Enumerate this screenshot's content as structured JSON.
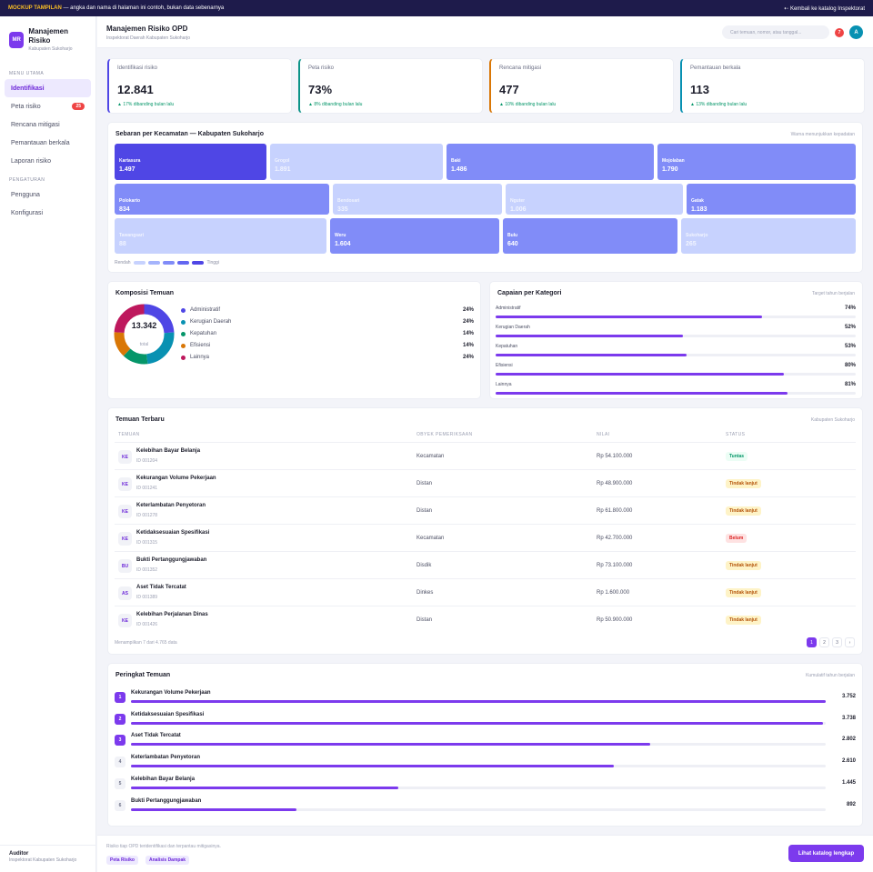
{
  "banner": {
    "tag": "MOCKUP TAMPILAN",
    "text": " — angka dan nama di halaman ini contoh, bukan data sebenarnya",
    "back": "⇠ Kembali ke katalog Inspektorat"
  },
  "brand": {
    "initials": "MR",
    "title": "Manajemen Risiko",
    "subtitle": "Kabupaten Sukoharjo"
  },
  "sidebar": {
    "section_main": "MENU UTAMA",
    "section_settings": "PENGATURAN",
    "items": [
      {
        "label": "Identifikasi"
      },
      {
        "label": "Peta risiko",
        "badge": "25"
      },
      {
        "label": "Rencana mitigasi"
      },
      {
        "label": "Pemantauan berkala"
      },
      {
        "label": "Laporan risiko"
      }
    ],
    "settings": [
      {
        "label": "Pengguna"
      },
      {
        "label": "Konfigurasi"
      }
    ],
    "footer": {
      "role": "Auditor",
      "org": "Inspektorat Kabupaten Sukoharjo"
    }
  },
  "header": {
    "title": "Manajemen Risiko OPD",
    "subtitle": "Inspektorat Daerah Kabupaten Sukoharjo",
    "search_placeholder": "Cari temuan, nomor, atau tanggal...",
    "notif_count": "7",
    "avatar": "A"
  },
  "kpis": [
    {
      "label": "Identifikasi risiko",
      "value": "12.841",
      "change": "▲ 17% dibanding bulan lalu",
      "accent": "#4f46e5"
    },
    {
      "label": "Peta risiko",
      "value": "73%",
      "change": "▲ 8% dibanding bulan lalu",
      "accent": "#0d9488"
    },
    {
      "label": "Rencana mitigasi",
      "value": "477",
      "change": "▲ 10% dibanding bulan lalu",
      "accent": "#d97706"
    },
    {
      "label": "Pemantauan berkala",
      "value": "113",
      "change": "▲ 13% dibanding bulan lalu",
      "accent": "#0891b2"
    }
  ],
  "sebaran": {
    "title": "Sebaran per Kecamatan — Kabupaten Sukoharjo",
    "note": "Warna menunjukkan kepadatan",
    "legend_low": "Rendah",
    "legend_high": "Tinggi",
    "legend_colors": [
      "#c7d2fe",
      "#a5b4fc",
      "#818cf8",
      "#6366f1",
      "#4f46e5"
    ],
    "tiles": [
      {
        "name": "Kartasura",
        "value": "1.497",
        "level": "high"
      },
      {
        "name": "Grogol",
        "value": "1.891",
        "level": "low"
      },
      {
        "name": "Baki",
        "value": "1.486",
        "level": "mid"
      },
      {
        "name": "Mojolaban",
        "value": "1.790",
        "level": "mid"
      },
      {
        "name": "Polokarto",
        "value": "834",
        "level": "mid"
      },
      {
        "name": "Bendosari",
        "value": "335",
        "level": "low"
      },
      {
        "name": "Nguter",
        "value": "1.006",
        "level": "low"
      },
      {
        "name": "Gatak",
        "value": "1.183",
        "level": "mid"
      },
      {
        "name": "Tawangsari",
        "value": "88",
        "level": "low"
      },
      {
        "name": "Weru",
        "value": "1.604",
        "level": "mid"
      },
      {
        "name": "Bulu",
        "value": "640",
        "level": "mid"
      },
      {
        "name": "Sukoharjo",
        "value": "265",
        "level": "low"
      }
    ]
  },
  "komposisi": {
    "title": "Komposisi Temuan",
    "total": "13.342",
    "total_label": "total",
    "items": [
      {
        "label": "Administratif",
        "pct": "24%",
        "value": 24,
        "color": "#4f46e5"
      },
      {
        "label": "Kerugian Daerah",
        "pct": "24%",
        "value": 24,
        "color": "#0891b2"
      },
      {
        "label": "Kepatuhan",
        "pct": "14%",
        "value": 14,
        "color": "#059669"
      },
      {
        "label": "Efisiensi",
        "pct": "14%",
        "value": 14,
        "color": "#d97706"
      },
      {
        "label": "Lainnya",
        "pct": "24%",
        "value": 24,
        "color": "#be185d"
      }
    ]
  },
  "capaian": {
    "title": "Capaian per Kategori",
    "note": "Target tahun berjalan",
    "items": [
      {
        "label": "Administratif",
        "pct": "74%",
        "value": 74
      },
      {
        "label": "Kerugian Daerah",
        "pct": "52%",
        "value": 52
      },
      {
        "label": "Kepatuhan",
        "pct": "53%",
        "value": 53
      },
      {
        "label": "Efisiensi",
        "pct": "80%",
        "value": 80
      },
      {
        "label": "Lainnya",
        "pct": "81%",
        "value": 81
      }
    ]
  },
  "temuan": {
    "title": "Temuan Terbaru",
    "note": "Kabupaten Sukoharjo",
    "columns": [
      "TEMUAN",
      "OBYEK PEMERIKSAAN",
      "NILAI",
      "STATUS"
    ],
    "rows": [
      {
        "icon": "KE",
        "title": "Kelebihan Bayar Belanja",
        "id": "ID 001204",
        "objek": "Kecamatan",
        "nilai": "Rp 54.100.000",
        "status": "Tuntas",
        "tone": "g"
      },
      {
        "icon": "KE",
        "title": "Kekurangan Volume Pekerjaan",
        "id": "ID 001241",
        "objek": "Distan",
        "nilai": "Rp 48.900.000",
        "status": "Tindak lanjut",
        "tone": "y"
      },
      {
        "icon": "KE",
        "title": "Keterlambatan Penyetoran",
        "id": "ID 001278",
        "objek": "Distan",
        "nilai": "Rp 61.800.000",
        "status": "Tindak lanjut",
        "tone": "y"
      },
      {
        "icon": "KE",
        "title": "Ketidaksesuaian Spesifikasi",
        "id": "ID 001315",
        "objek": "Kecamatan",
        "nilai": "Rp 42.700.000",
        "status": "Belum",
        "tone": "r"
      },
      {
        "icon": "BU",
        "title": "Bukti Pertanggungjawaban",
        "id": "ID 001352",
        "objek": "Disdik",
        "nilai": "Rp 73.100.000",
        "status": "Tindak lanjut",
        "tone": "y"
      },
      {
        "icon": "AS",
        "title": "Aset Tidak Tercatat",
        "id": "ID 001389",
        "objek": "Dinkes",
        "nilai": "Rp 1.600.000",
        "status": "Tindak lanjut",
        "tone": "y"
      },
      {
        "icon": "KE",
        "title": "Kelebihan Perjalanan Dinas",
        "id": "ID 001426",
        "objek": "Distan",
        "nilai": "Rp 50.900.000",
        "status": "Tindak lanjut",
        "tone": "y"
      }
    ],
    "summary": "Menampilkan 7 dari 4.765 data",
    "pages": [
      "1",
      "2",
      "3",
      "›"
    ]
  },
  "peringkat": {
    "title": "Peringkat Temuan",
    "note": "Kumulatif tahun berjalan",
    "items": [
      {
        "rank": "1",
        "label": "Kekurangan Volume Pekerjaan",
        "value": "3.752",
        "num": 3752
      },
      {
        "rank": "2",
        "label": "Ketidaksesuaian Spesifikasi",
        "value": "3.738",
        "num": 3738
      },
      {
        "rank": "3",
        "label": "Aset Tidak Tercatat",
        "value": "2.802",
        "num": 2802
      },
      {
        "rank": "4",
        "label": "Keterlambatan Penyetoran",
        "value": "2.610",
        "num": 2610
      },
      {
        "rank": "5",
        "label": "Kelebihan Bayar Belanja",
        "value": "1.445",
        "num": 1445
      },
      {
        "rank": "6",
        "label": "Bukti Pertanggungjawaban",
        "value": "892",
        "num": 892
      }
    ]
  },
  "footer": {
    "text": "Risiko tiap OPD teridentifikasi dan terpantau mitigasinya.",
    "chip1": "Peta Risiko",
    "chip2": "Analisis Dampak",
    "cta": "Lihat katalog lengkap"
  }
}
